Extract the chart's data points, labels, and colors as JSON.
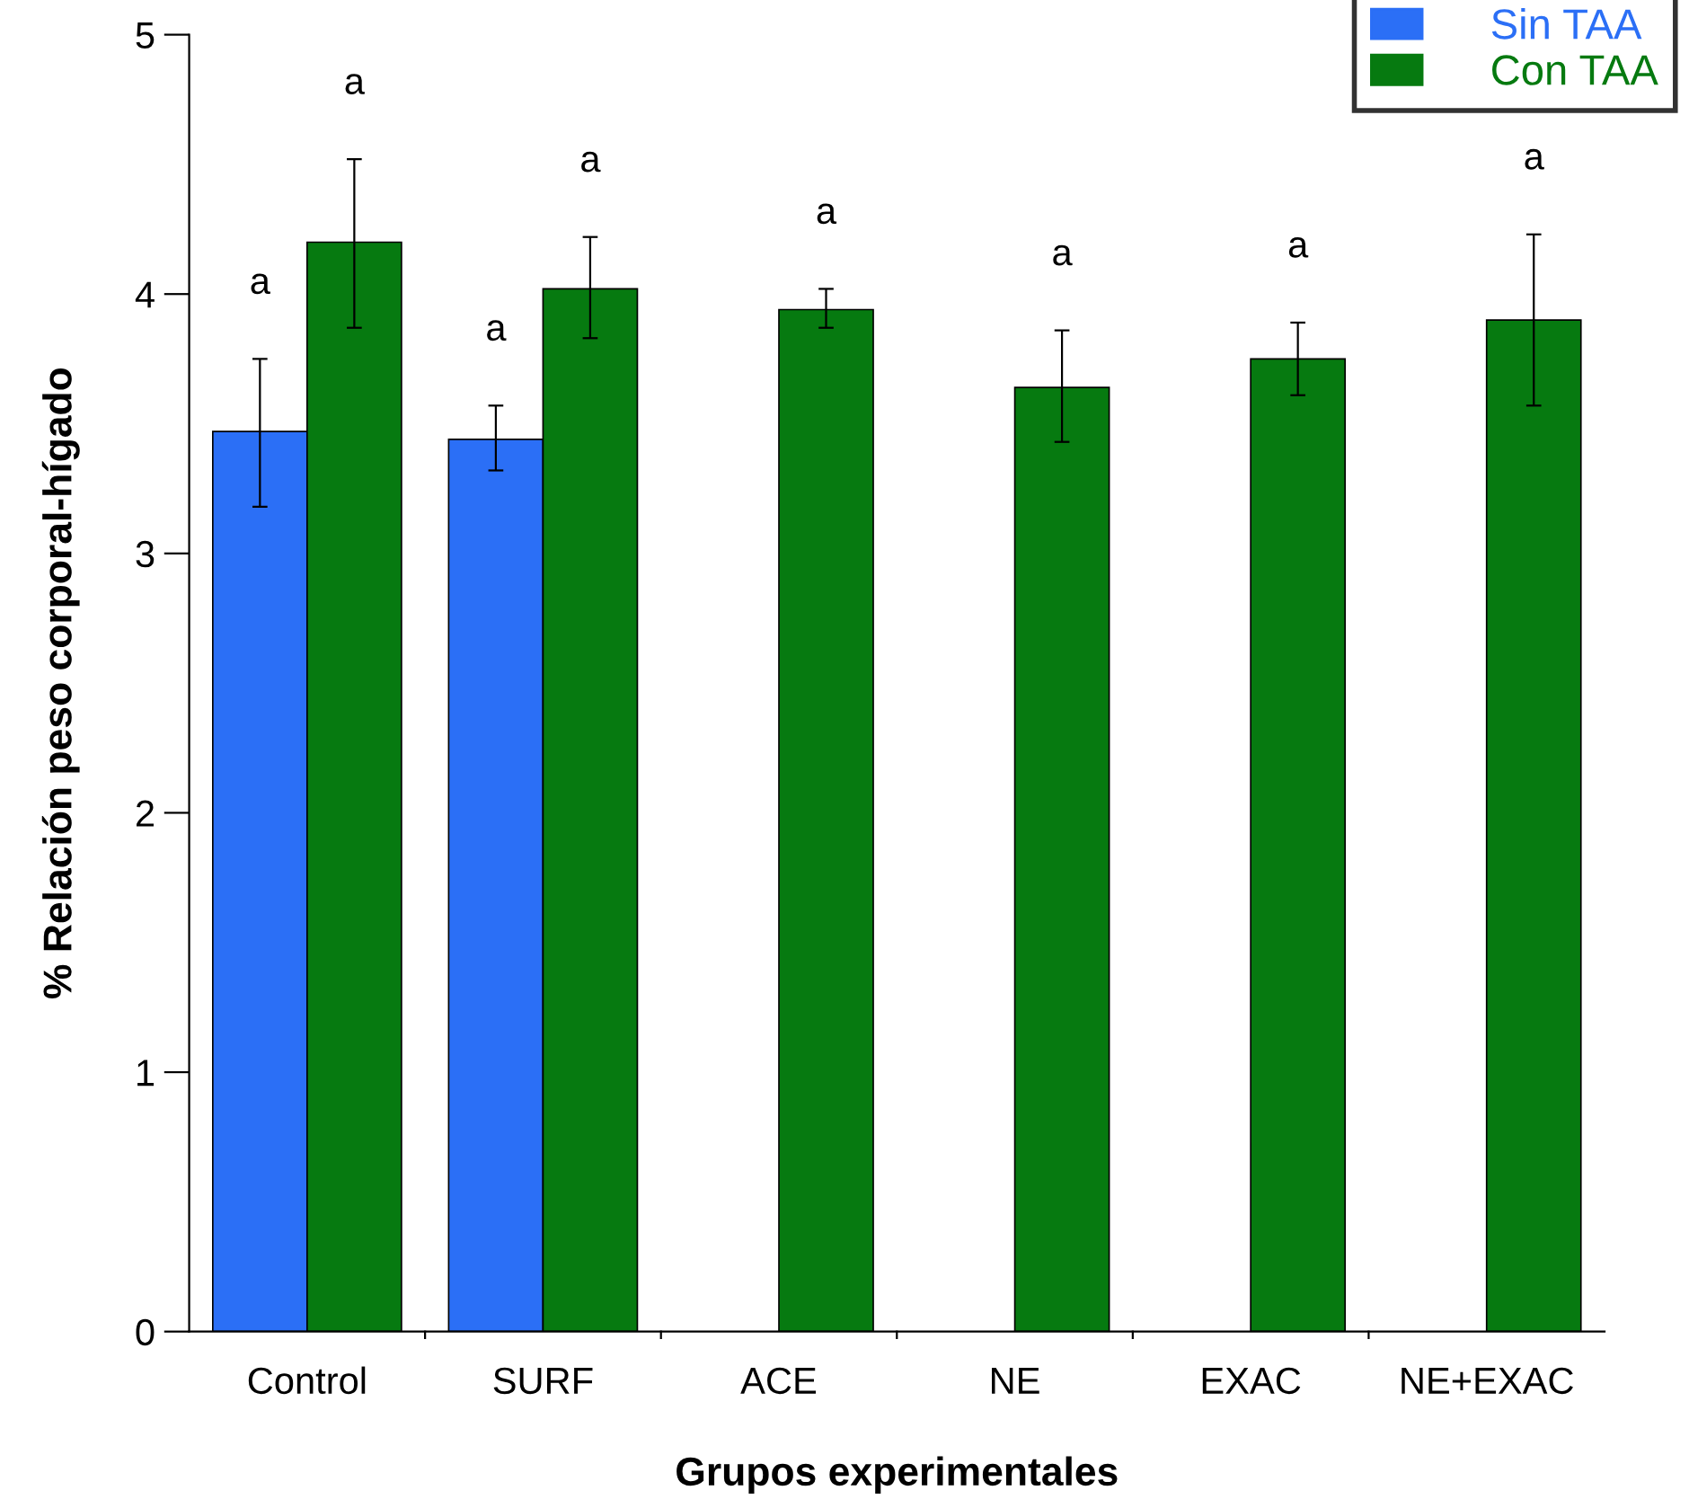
{
  "chart_data": {
    "type": "bar",
    "xlabel": "Grupos experimentales",
    "ylabel": "% Relación peso corporal-hígado",
    "categories": [
      "Control",
      "SURF",
      "ACE",
      "NE",
      "EXAC",
      "NE+EXAC"
    ],
    "series": [
      {
        "name": "Sin TAA",
        "color": "#2b6ff6",
        "values": [
          3.47,
          3.44,
          null,
          null,
          null,
          null
        ],
        "errors": [
          [
            3.18,
            3.75
          ],
          [
            3.32,
            3.57
          ],
          null,
          null,
          null,
          null
        ]
      },
      {
        "name": "Con TAA",
        "color": "#067a10",
        "values": [
          4.2,
          4.02,
          3.94,
          3.64,
          3.75,
          3.9
        ],
        "errors": [
          [
            3.87,
            4.52
          ],
          [
            3.83,
            4.22
          ],
          [
            3.87,
            4.02
          ],
          [
            3.43,
            3.86
          ],
          [
            3.61,
            3.89
          ],
          [
            3.57,
            4.23
          ]
        ]
      }
    ],
    "annotations": [
      "a",
      "a",
      "a",
      "a",
      "a",
      "a",
      "a",
      "a"
    ],
    "ylim": [
      0,
      5
    ],
    "yticks": [
      0,
      1,
      2,
      3,
      4,
      5
    ],
    "grid": false,
    "legend": "top right"
  }
}
